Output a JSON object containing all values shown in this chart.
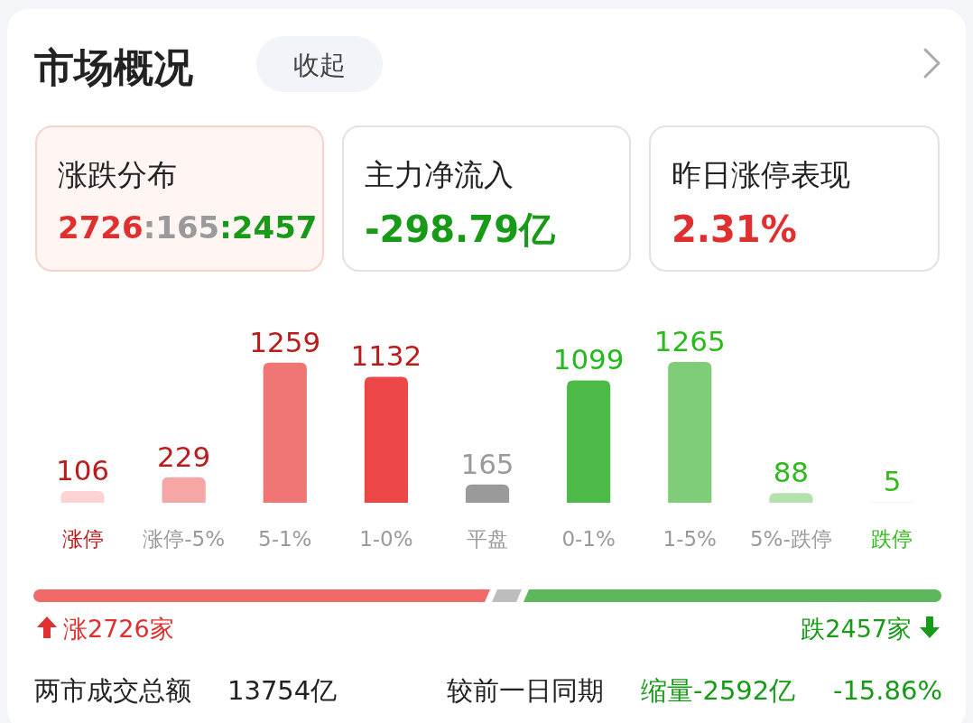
{
  "chart_data": {
    "type": "bar",
    "title": "市场概况",
    "categories": [
      "涨停",
      "涨停-5%",
      "5-1%",
      "1-0%",
      "平盘",
      "0-1%",
      "1-5%",
      "5%-跌停",
      "跌停"
    ],
    "values": [
      106,
      229,
      1259,
      1132,
      165,
      1099,
      1265,
      88,
      5
    ],
    "colors": [
      "#fdd3d3",
      "#f7a6a6",
      "#f07676",
      "#ec4646",
      "#9a9a9a",
      "#4dba48",
      "#80cd79",
      "#b3e2ad",
      "#d9f1d5"
    ],
    "data_labels": true,
    "annotations": [
      "收起",
      "涨跌分布",
      "2726:165:2457",
      "主力净流入",
      "-298.79亿",
      "昨日涨停表现",
      "2.31%",
      "涨2726家",
      "跌2457家",
      "两市成交总额",
      "13754亿",
      "较前一日同期",
      "缩量-2592亿",
      "-15.86%"
    ]
  }
}
